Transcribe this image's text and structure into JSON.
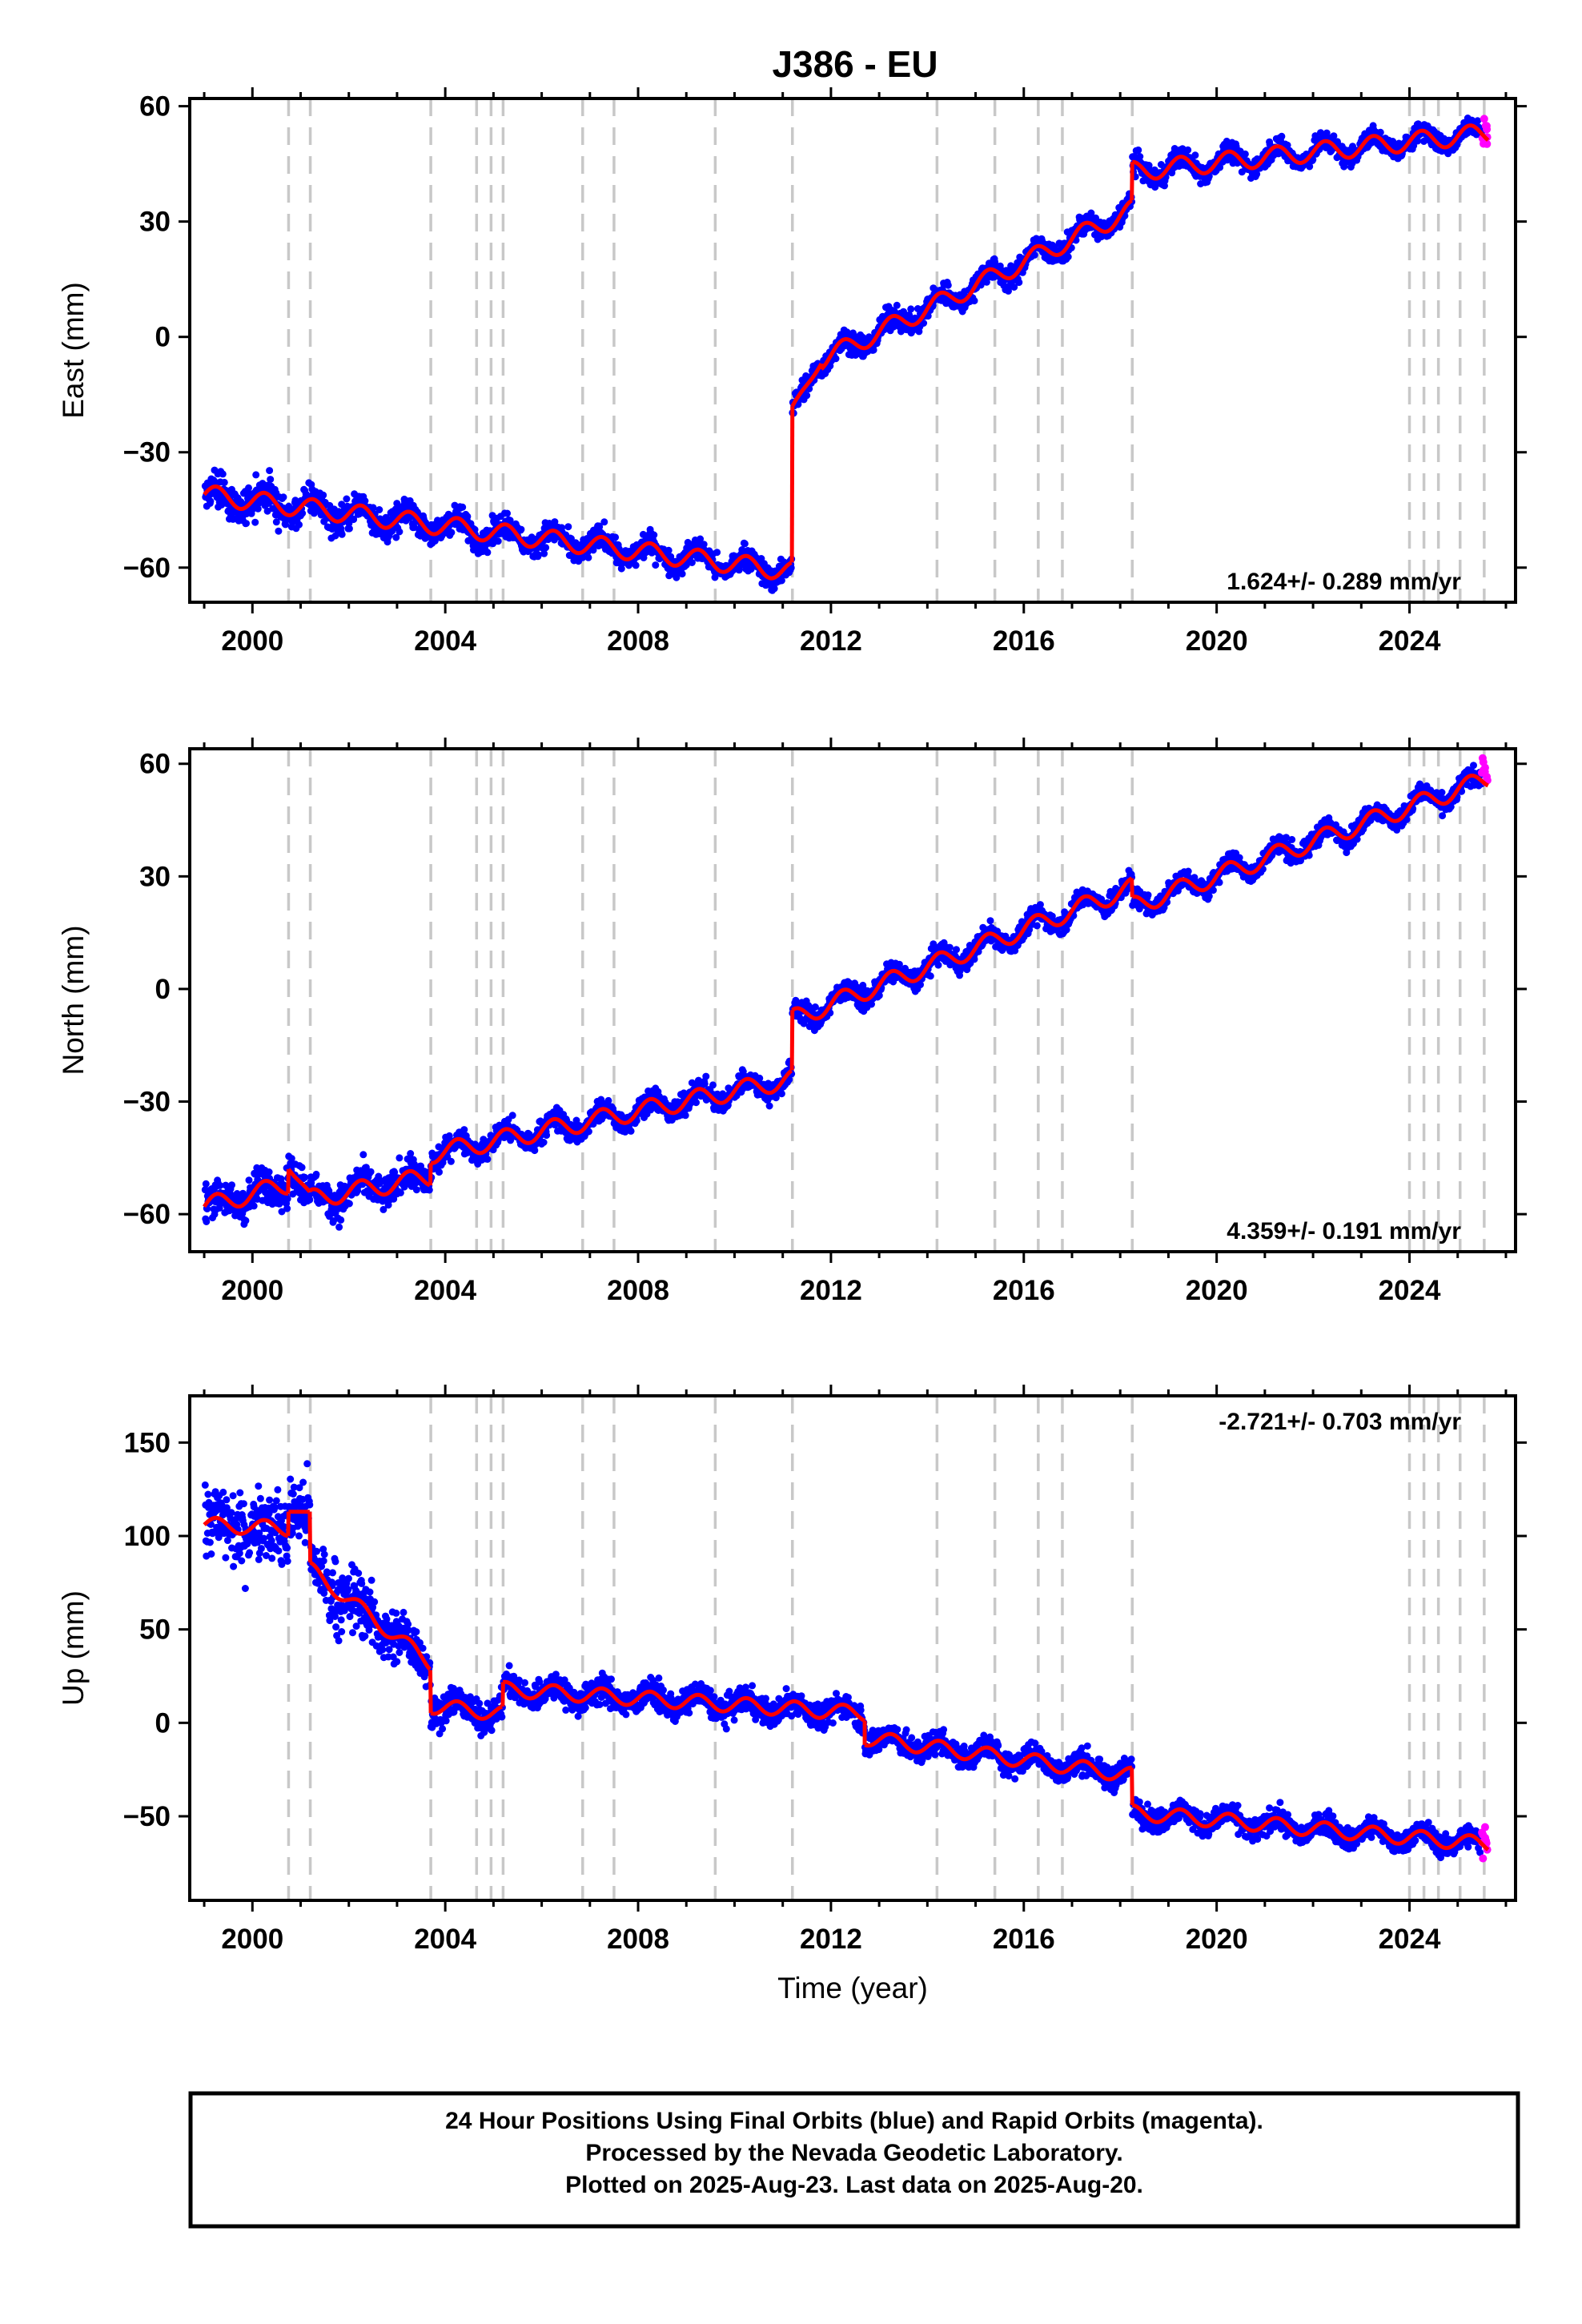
{
  "title": "J386 - EU",
  "footer": {
    "line1": "24 Hour Positions Using Final Orbits (blue) and Rapid Orbits (magenta).",
    "line2": "Processed by the Nevada Geodetic Laboratory.",
    "line3": "Plotted on 2025-Aug-23. Last data on 2025-Aug-20."
  },
  "colors": {
    "final_orbits": "#0000ff",
    "rapid_orbits": "#ff00ff",
    "model_fit": "#ff0000",
    "event_lines": "#c8c8c8"
  },
  "chart_data": [
    {
      "type": "scatter",
      "component": "east",
      "ylabel": "East (mm)",
      "xlabel": "",
      "xlim": [
        1998.7,
        2026.2
      ],
      "ylim": [
        -69,
        62
      ],
      "xticks": [
        2000,
        2004,
        2008,
        2012,
        2016,
        2020,
        2024
      ],
      "yticks": [
        -60,
        -30,
        0,
        30,
        60
      ],
      "rate_label": "1.624+/- 0.289 mm/yr",
      "event_lines": [
        2000.75,
        2001.2,
        2003.7,
        2004.65,
        2004.95,
        2005.2,
        2006.85,
        2007.5,
        2009.6,
        2011.2,
        2014.2,
        2015.4,
        2016.3,
        2016.8,
        2018.25,
        2024.0,
        2024.3,
        2024.6,
        2025.05,
        2025.55
      ],
      "model_segments": [
        {
          "x": [
            1999.0,
            2011.19
          ],
          "y": [
            -41,
            -61
          ],
          "amp": 2.5
        },
        {
          "x": [
            2011.2,
            2011.8
          ],
          "y": [
            -19,
            -6
          ],
          "amp": 1.0
        },
        {
          "x": [
            2011.8,
            2018.24
          ],
          "y": [
            -6,
            33
          ],
          "amp": 2.5
        },
        {
          "x": [
            2018.25,
            2025.63
          ],
          "y": [
            43,
            53
          ],
          "amp": 2.5
        }
      ],
      "spread": [
        [
          1998.9,
          4.5
        ],
        [
          2004.0,
          3.0
        ],
        [
          2026.5,
          2.2
        ]
      ],
      "rapid": {
        "x": [
          2025.5,
          2025.62
        ],
        "y": [
          49,
          57
        ]
      }
    },
    {
      "type": "scatter",
      "component": "north",
      "ylabel": "North (mm)",
      "xlabel": "",
      "xlim": [
        1998.7,
        2026.2
      ],
      "ylim": [
        -70,
        64
      ],
      "xticks": [
        2000,
        2004,
        2008,
        2012,
        2016,
        2020,
        2024
      ],
      "yticks": [
        -60,
        -30,
        0,
        30,
        60
      ],
      "rate_label": "4.359+/- 0.191 mm/yr",
      "event_lines": [
        2000.75,
        2001.2,
        2003.7,
        2004.65,
        2004.95,
        2005.2,
        2006.85,
        2007.5,
        2009.6,
        2011.2,
        2014.2,
        2015.4,
        2016.3,
        2016.8,
        2018.25,
        2024.0,
        2024.3,
        2024.6,
        2025.05,
        2025.55
      ],
      "model_segments": [
        {
          "x": [
            1999.0,
            2000.74
          ],
          "y": [
            -58,
            -52
          ],
          "amp": 2.5
        },
        {
          "x": [
            2000.75,
            2001.19
          ],
          "y": [
            -47,
            -55
          ],
          "amp": 1.0
        },
        {
          "x": [
            2001.2,
            2003.69
          ],
          "y": [
            -56,
            -50
          ],
          "amp": 2.5
        },
        {
          "x": [
            2003.7,
            2011.19
          ],
          "y": [
            -44,
            -24
          ],
          "amp": 2.5
        },
        {
          "x": [
            2011.2,
            2018.24
          ],
          "y": [
            -8,
            27
          ],
          "amp": 2.5
        },
        {
          "x": [
            2018.25,
            2025.63
          ],
          "y": [
            22,
            56
          ],
          "amp": 2.5
        }
      ],
      "spread": [
        [
          1998.9,
          4.5
        ],
        [
          2003.6,
          4.0
        ],
        [
          2004.0,
          2.8
        ],
        [
          2026.5,
          2.2
        ]
      ],
      "rapid": {
        "x": [
          2025.5,
          2025.62
        ],
        "y": [
          55,
          62
        ]
      }
    },
    {
      "type": "scatter",
      "component": "up",
      "ylabel": "Up (mm)",
      "xlabel": "Time (year)",
      "xlim": [
        1998.7,
        2026.2
      ],
      "ylim": [
        -95,
        175
      ],
      "xticks": [
        2000,
        2004,
        2008,
        2012,
        2016,
        2020,
        2024
      ],
      "yticks": [
        -50,
        0,
        50,
        100,
        150
      ],
      "rate_label": "-2.721+/- 0.703 mm/yr",
      "event_lines": [
        2000.75,
        2001.2,
        2003.7,
        2004.65,
        2004.95,
        2005.2,
        2006.85,
        2007.5,
        2009.6,
        2011.2,
        2014.2,
        2015.4,
        2016.3,
        2016.8,
        2018.25,
        2024.0,
        2024.3,
        2024.6,
        2025.05,
        2025.55
      ],
      "model_segments": [
        {
          "x": [
            1999.0,
            2000.74
          ],
          "y": [
            106,
            104
          ],
          "amp": 4.0
        },
        {
          "x": [
            2000.75,
            2001.19
          ],
          "y": [
            113,
            113
          ],
          "amp": 0.0
        },
        {
          "x": [
            2001.2,
            2003.69
          ],
          "y": [
            82,
            32
          ],
          "amp": 4.0
        },
        {
          "x": [
            2003.7,
            2005.19
          ],
          "y": [
            9,
            5
          ],
          "amp": 4.0
        },
        {
          "x": [
            2005.2,
            2012.7
          ],
          "y": [
            18,
            5
          ],
          "amp": 4.0
        },
        {
          "x": [
            2012.7,
            2018.24
          ],
          "y": [
            -8,
            -28
          ],
          "amp": 4.0
        },
        {
          "x": [
            2018.25,
            2025.63
          ],
          "y": [
            -48,
            -65
          ],
          "amp": 4.0
        }
      ],
      "spread": [
        [
          1998.9,
          18
        ],
        [
          2002.3,
          16
        ],
        [
          2003.6,
          11
        ],
        [
          2004.0,
          7
        ],
        [
          2026.5,
          5
        ]
      ],
      "rapid": {
        "x": [
          2025.5,
          2025.62
        ],
        "y": [
          -73,
          -50
        ]
      }
    }
  ]
}
